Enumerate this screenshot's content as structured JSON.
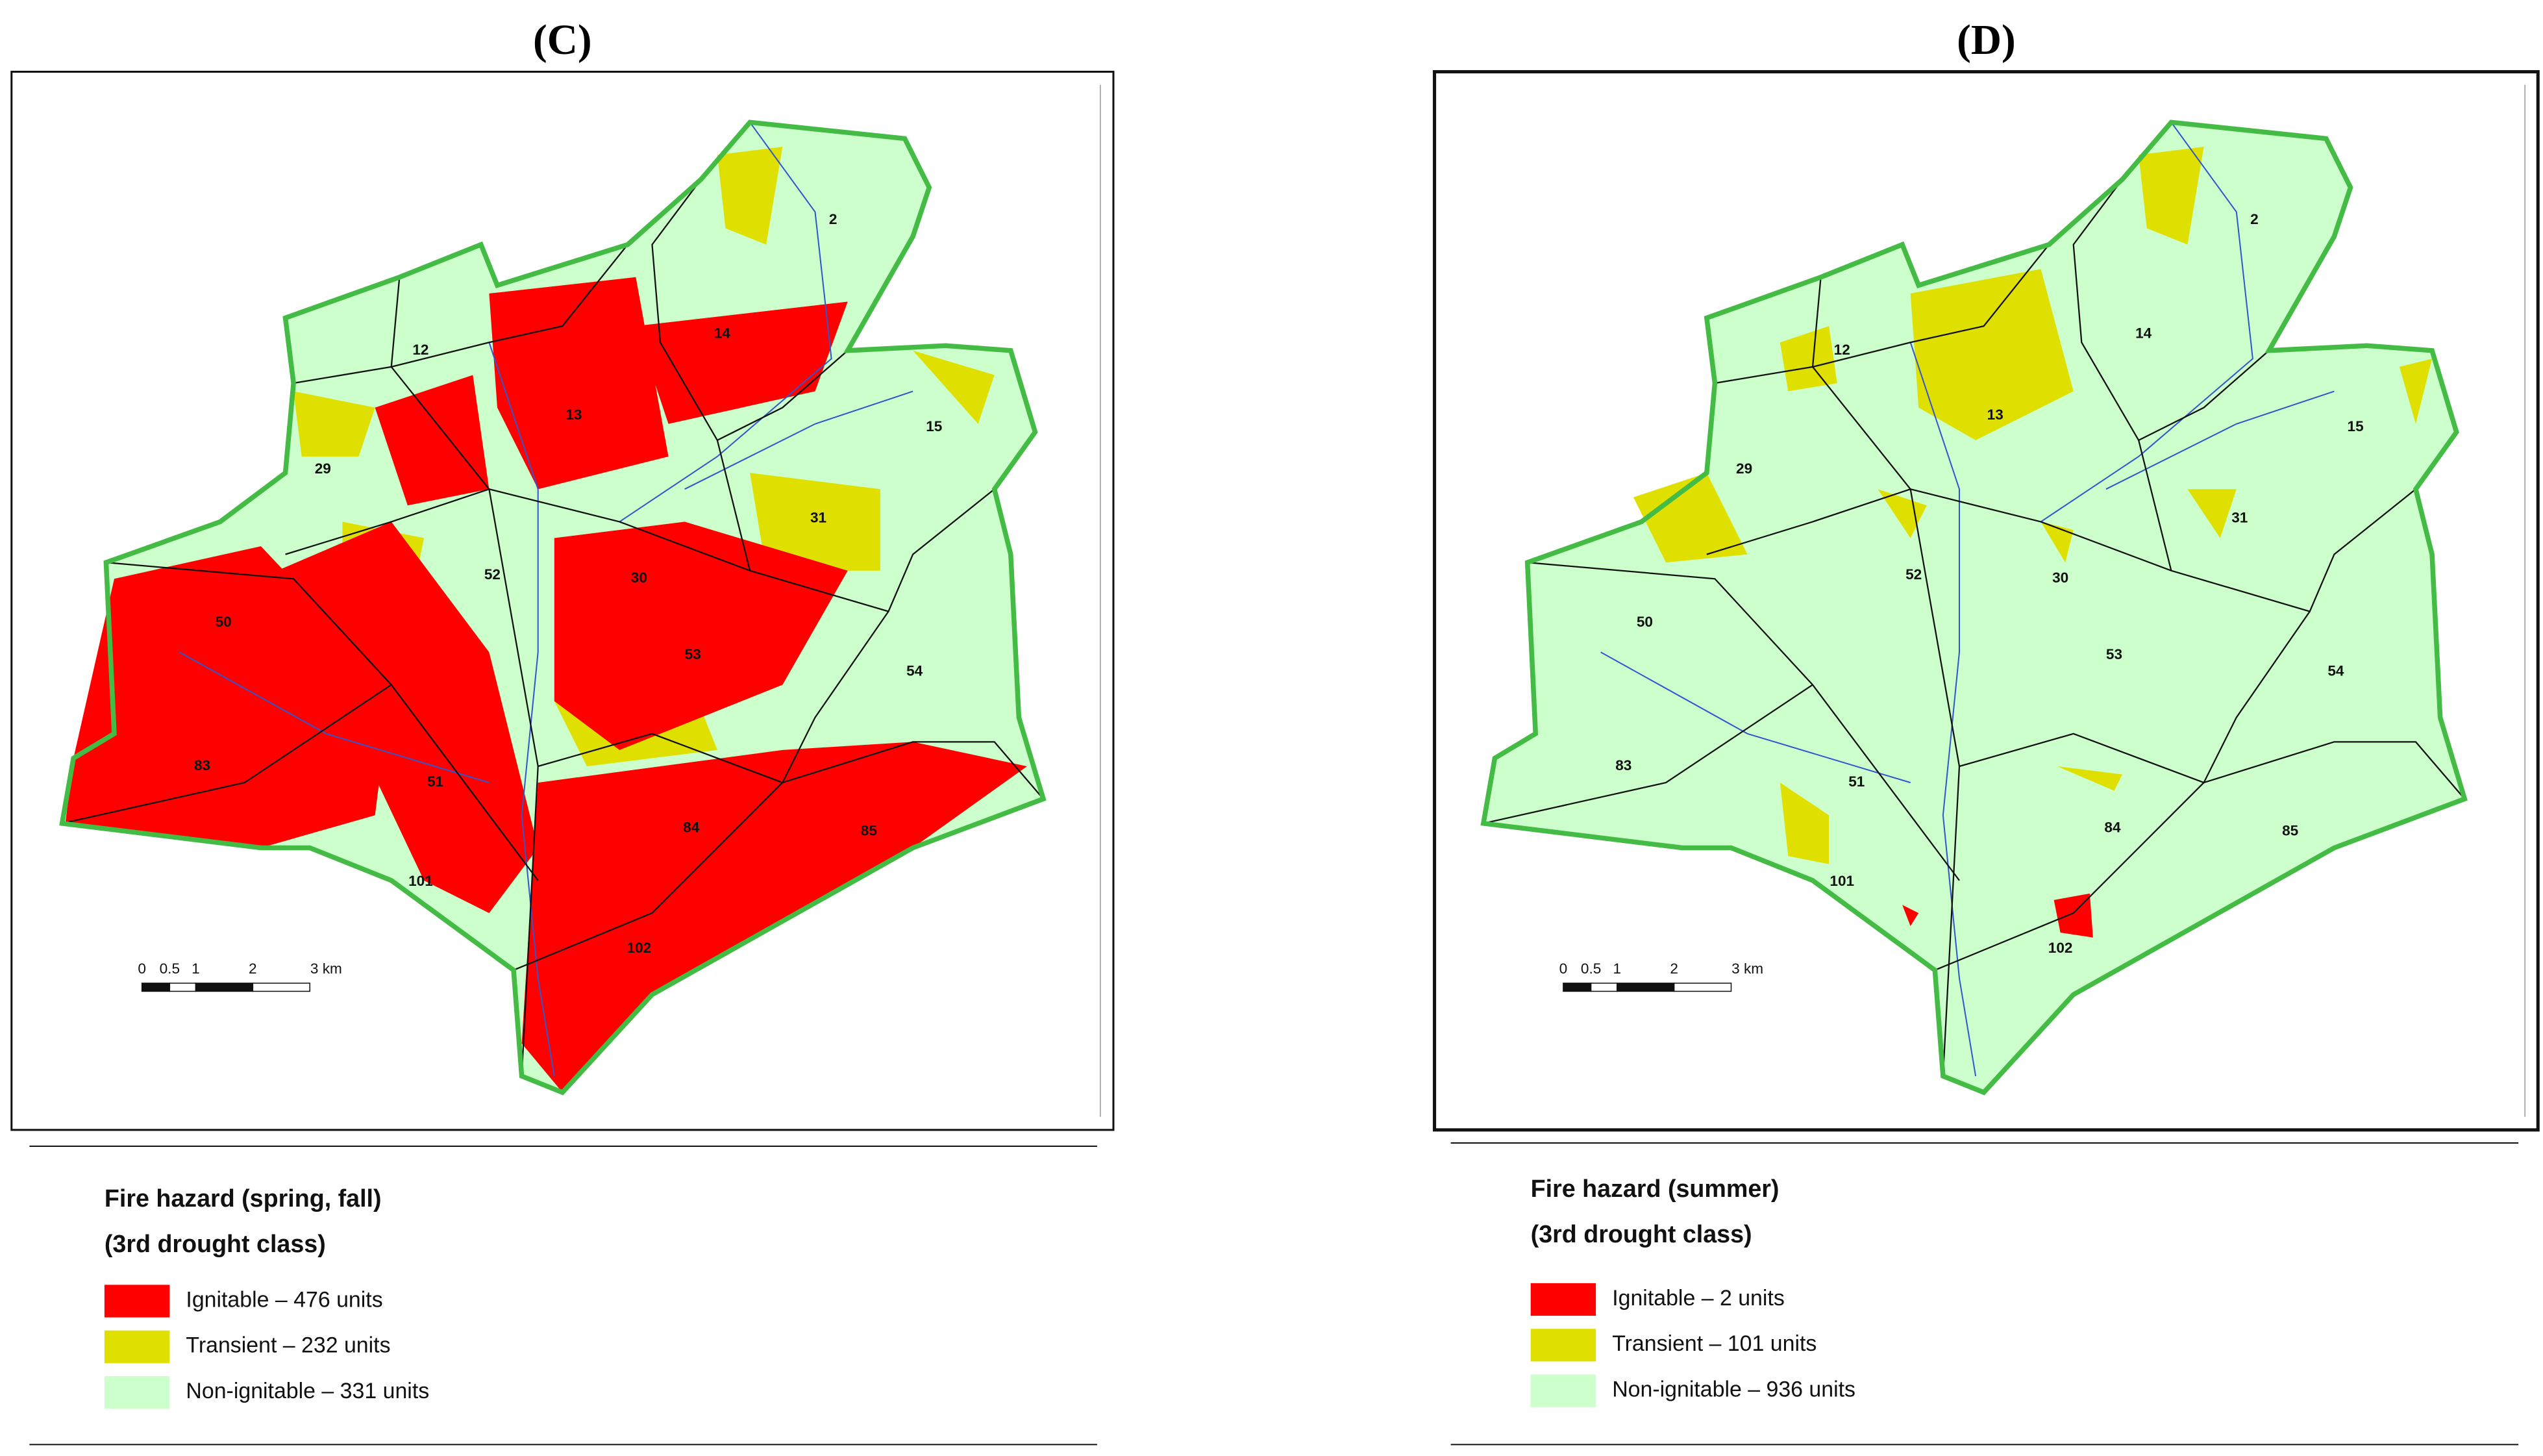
{
  "panels": [
    {
      "label": "(C)",
      "map_labels": [
        "2",
        "12",
        "14",
        "13",
        "15",
        "29",
        "31",
        "52",
        "30",
        "50",
        "53",
        "54",
        "83",
        "51",
        "84",
        "85",
        "101",
        "102"
      ],
      "scale_labels": [
        "0",
        "0.5",
        "1",
        "2",
        "3 km"
      ],
      "legend": {
        "title_lines": [
          "Fire hazard (spring, fall)",
          "(3rd drought class)"
        ],
        "items": [
          {
            "label": "Ignitable – 476 units",
            "color": "#ff0000"
          },
          {
            "label": "Transient – 232 units",
            "color": "#e0e000"
          },
          {
            "label": "Non-ignitable – 331 units",
            "color": "#ccffcc"
          }
        ]
      }
    },
    {
      "label": "(D)",
      "map_labels": [
        "2",
        "12",
        "14",
        "13",
        "15",
        "29",
        "31",
        "52",
        "30",
        "50",
        "53",
        "54",
        "83",
        "51",
        "84",
        "85",
        "101",
        "102"
      ],
      "scale_labels": [
        "0",
        "0.5",
        "1",
        "2",
        "3 km"
      ],
      "legend": {
        "title_lines": [
          "Fire hazard (summer)",
          "(3rd drought class)"
        ],
        "items": [
          {
            "label": "Ignitable – 2 units",
            "color": "#ff0000"
          },
          {
            "label": "Transient – 101 units",
            "color": "#e0e000"
          },
          {
            "label": "Non-ignitable – 936 units",
            "color": "#ccffcc"
          }
        ]
      }
    }
  ]
}
